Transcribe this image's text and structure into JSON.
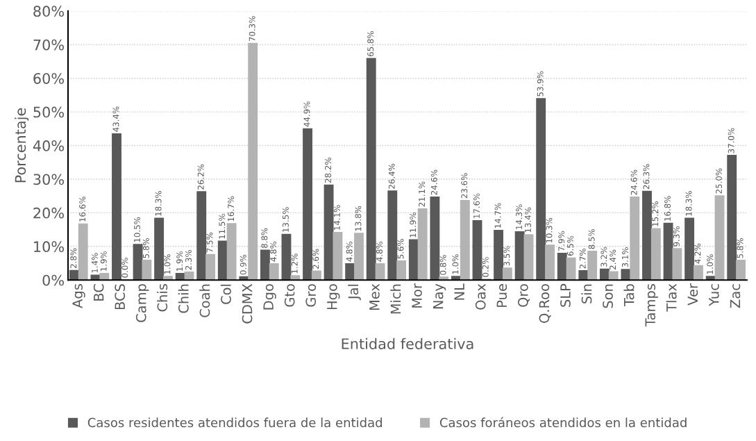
{
  "chart_data": {
    "type": "bar",
    "xlabel": "Entidad federativa",
    "ylabel": "Porcentaje",
    "categories": [
      "Ags",
      "BC",
      "BCS",
      "Camp",
      "Chis",
      "Chih",
      "Coah",
      "Col",
      "CDMX",
      "Dgo",
      "Gto",
      "Gro",
      "Hgo",
      "Jal",
      "Mex",
      "Mich",
      "Mor",
      "Nay",
      "NL",
      "Oax",
      "Pue",
      "Qro",
      "Q.Roo",
      "SLP",
      "Sin",
      "Son",
      "Tab",
      "Tamps",
      "Tlax",
      "Ver",
      "Yuc",
      "Zac"
    ],
    "series": [
      {
        "name": "Casos residentes atendidos fuera de la entidad",
        "color": "#595959",
        "values": [
          2.8,
          1.4,
          43.4,
          10.5,
          18.3,
          1.9,
          26.2,
          11.5,
          0.9,
          8.8,
          13.5,
          44.9,
          28.2,
          4.8,
          65.8,
          26.4,
          11.9,
          24.6,
          1.0,
          17.6,
          14.7,
          14.3,
          53.9,
          7.9,
          2.7,
          3.2,
          3.1,
          26.3,
          16.8,
          18.3,
          1.0,
          37.0
        ],
        "value_labels": [
          "2.8%",
          "1.4%",
          "43.4%",
          "10.5%",
          "18.3%",
          "1.9%",
          "26.2%",
          "11.5%",
          "0.9%",
          "8.8%",
          "13.5%",
          "44.9%",
          "28.2%",
          "4.8%",
          "65.8%",
          "26.4%",
          "11.9%",
          "24.6%",
          "1.0%",
          "17.6%",
          "14.7%",
          "14.3%",
          "53.9%",
          "7.9%",
          "2.7%",
          "3.2%",
          "3.1%",
          "26.3%",
          "16.8%",
          "18.3%",
          "1.0%",
          "37.0%"
        ]
      },
      {
        "name": "Casos foráneos atendidos en la entidad",
        "color": "#b3b3b3",
        "values": [
          16.6,
          1.9,
          0.0,
          5.8,
          1.0,
          2.3,
          7.5,
          16.7,
          70.3,
          4.8,
          1.2,
          2.6,
          14.1,
          13.8,
          4.8,
          5.6,
          21.1,
          0.8,
          23.6,
          0.2,
          3.5,
          13.4,
          10.3,
          6.5,
          8.5,
          2.4,
          24.6,
          15.2,
          9.3,
          4.2,
          25.0,
          5.8
        ],
        "value_labels": [
          "16.6%",
          "1.9%",
          "0.0%",
          "5.8%",
          "1.0%",
          "2.3%",
          "7.5%",
          "16.7%",
          "70.3%",
          "4.8%",
          "1.2%",
          "2.6%",
          "14.1%",
          "13.8%",
          "4.8%",
          "5.6%",
          "21.1%",
          "0.8%",
          "23.6%",
          "0.2%",
          "3.5%",
          "13.4%",
          "10.3%",
          "6.5%",
          "8.5%",
          "2.4%",
          "24.6%",
          "15.2%",
          "9.3%",
          "4.2%",
          "25.0%",
          "5.8%"
        ]
      }
    ],
    "ylim": [
      0,
      80
    ],
    "yticks": [
      {
        "value": 0,
        "label": "0%"
      },
      {
        "value": 10,
        "label": "10%"
      },
      {
        "value": 20,
        "label": "20%"
      },
      {
        "value": 30,
        "label": "30%"
      },
      {
        "value": 40,
        "label": "40%"
      },
      {
        "value": 50,
        "label": "50%"
      },
      {
        "value": 60,
        "label": "60%"
      },
      {
        "value": 70,
        "label": "70%"
      },
      {
        "value": 80,
        "label": "80%"
      }
    ],
    "grid": "y",
    "legend": "bottom"
  }
}
